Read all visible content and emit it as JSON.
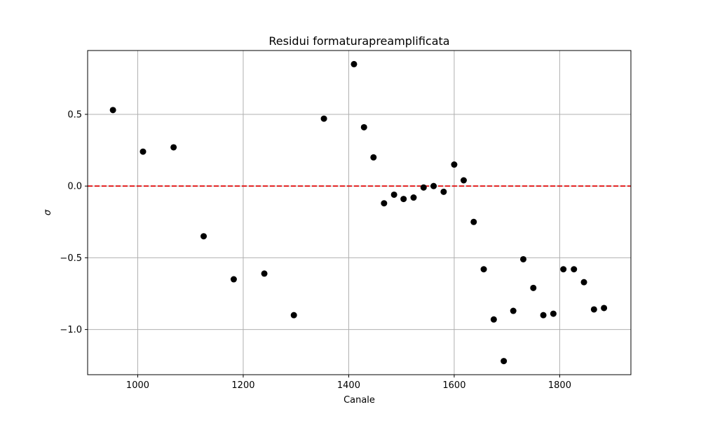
{
  "chart_data": {
    "type": "scatter",
    "title": "Residui formaturapreamplificata",
    "xlabel": "Canale",
    "ylabel": "σ",
    "xlim": [
      905,
      1935
    ],
    "ylim": [
      -1.315,
      0.945
    ],
    "xticks": [
      1000,
      1200,
      1400,
      1600,
      1800
    ],
    "yticks": [
      -1.0,
      -0.5,
      0.0,
      0.5
    ],
    "xtick_labels": [
      "1000",
      "1200",
      "1400",
      "1600",
      "1800"
    ],
    "ytick_labels": [
      "−1.0",
      "−0.5",
      "0.0",
      "0.5"
    ],
    "grid": true,
    "reference_line": {
      "y": 0.0,
      "style": "dashed",
      "color": "#e01010"
    },
    "marker_color": "#000000",
    "series": [
      {
        "x": [
          953,
          1010,
          1068,
          1125,
          1182,
          1240,
          1296,
          1353,
          1410,
          1429,
          1447,
          1467,
          1486,
          1504,
          1523,
          1542,
          1561,
          1580,
          1600,
          1618,
          1637,
          1656,
          1675,
          1694,
          1712,
          1731,
          1750,
          1769,
          1788,
          1807,
          1827,
          1846,
          1865,
          1884
        ],
        "y": [
          0.53,
          0.24,
          0.27,
          -0.35,
          -0.65,
          -0.61,
          -0.9,
          0.47,
          0.85,
          0.41,
          0.2,
          -0.12,
          -0.06,
          -0.09,
          -0.08,
          -0.01,
          0.0,
          -0.04,
          0.15,
          0.04,
          -0.25,
          -0.58,
          -0.93,
          -1.22,
          -0.87,
          -0.51,
          -0.71,
          -0.9,
          -0.89,
          -0.58,
          -0.58,
          -0.67,
          -0.86,
          -0.85
        ]
      }
    ]
  }
}
